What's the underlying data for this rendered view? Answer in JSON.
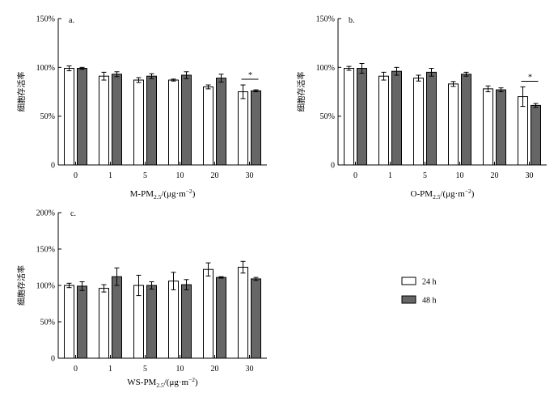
{
  "chart_data": [
    {
      "type": "bar",
      "panel_label": "a.",
      "xlabel_main": "M-PM",
      "xlabel_sub": "2.5",
      "xlabel_unit": "/(μg·m",
      "xlabel_sup": "−2",
      "xlabel_close": ")",
      "ylabel": "细胞存活率",
      "ylim": [
        0,
        150
      ],
      "yticks": [
        "0",
        "50%",
        "100%",
        "150%"
      ],
      "categories": [
        "0",
        "1",
        "5",
        "10",
        "20",
        "30"
      ],
      "series": [
        {
          "name": "24 h",
          "values": [
            99,
            91,
            87,
            87,
            80,
            75
          ],
          "errors": [
            2.5,
            4,
            2.5,
            1,
            2,
            7
          ],
          "color": "#ffffff"
        },
        {
          "name": "48 h",
          "values": [
            99,
            93,
            91,
            92,
            89,
            76
          ],
          "errors": [
            1,
            2.5,
            2.5,
            3.5,
            4,
            1
          ],
          "color": "#666666"
        }
      ],
      "annotation": "*"
    },
    {
      "type": "bar",
      "panel_label": "b.",
      "xlabel_main": "O-PM",
      "xlabel_sub": "2.5",
      "xlabel_unit": "/(μg·m",
      "xlabel_sup": "−2",
      "xlabel_close": ")",
      "ylabel": "细胞存活率",
      "ylim": [
        0,
        150
      ],
      "yticks": [
        "0",
        "50%",
        "100%",
        "150%"
      ],
      "categories": [
        "0",
        "1",
        "5",
        "10",
        "20",
        "30"
      ],
      "series": [
        {
          "name": "24 h",
          "values": [
            99,
            91,
            89,
            83,
            78,
            70
          ],
          "errors": [
            2,
            4,
            3,
            2.5,
            3,
            10
          ],
          "color": "#ffffff"
        },
        {
          "name": "48 h",
          "values": [
            99,
            96,
            95,
            93,
            77,
            61
          ],
          "errors": [
            5,
            4,
            4,
            2,
            2,
            2
          ],
          "color": "#666666"
        }
      ],
      "annotation": "*"
    },
    {
      "type": "bar",
      "panel_label": "c.",
      "xlabel_main": "WS-PM",
      "xlabel_sub": "2.5",
      "xlabel_unit": "/(μg·m",
      "xlabel_sup": "−2",
      "xlabel_close": ")",
      "ylabel": "细胞存活率",
      "ylim": [
        0,
        200
      ],
      "yticks": [
        "0",
        "50%",
        "100%",
        "150%",
        "200%"
      ],
      "categories": [
        "0",
        "1",
        "5",
        "10",
        "20",
        "30"
      ],
      "series": [
        {
          "name": "24 h",
          "values": [
            100,
            96,
            100,
            106,
            122,
            125
          ],
          "errors": [
            3,
            5,
            14,
            12,
            9,
            8
          ],
          "color": "#ffffff"
        },
        {
          "name": "48 h",
          "values": [
            99,
            112,
            100,
            101,
            111,
            109
          ],
          "errors": [
            6,
            12,
            5,
            7,
            1,
            2
          ],
          "color": "#666666"
        }
      ],
      "annotation": ""
    }
  ],
  "legend": {
    "items": [
      {
        "label": "24 h",
        "color": "#ffffff"
      },
      {
        "label": "48 h",
        "color": "#666666"
      }
    ]
  }
}
